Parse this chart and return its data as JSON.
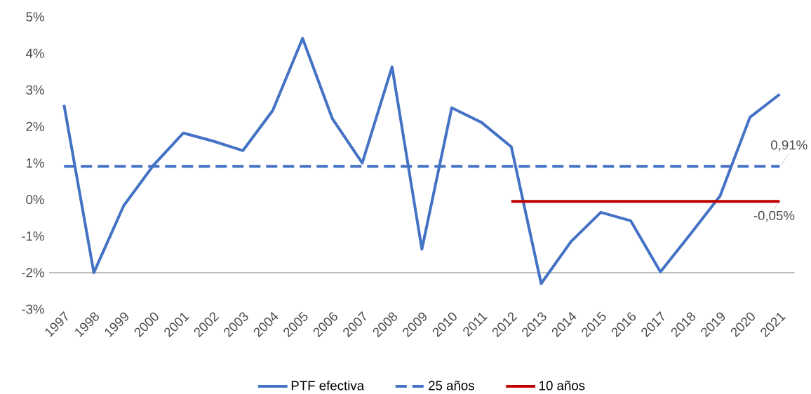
{
  "chart_data": {
    "type": "line",
    "categories": [
      "1997",
      "1998",
      "1999",
      "2000",
      "2001",
      "2002",
      "2003",
      "2004",
      "2005",
      "2006",
      "2007",
      "2008",
      "2009",
      "2010",
      "2011",
      "2012",
      "2013",
      "2014",
      "2015",
      "2016",
      "2017",
      "2018",
      "2019",
      "2020",
      "2021"
    ],
    "series": [
      {
        "name": "PTF efectiva",
        "color": "#4472c4",
        "line_style": "solid",
        "values": [
          2.59,
          -2.0,
          -0.17,
          0.94,
          1.82,
          1.6,
          1.34,
          2.44,
          4.41,
          2.21,
          1.0,
          3.63,
          -1.36,
          2.51,
          2.11,
          1.44,
          -2.3,
          -1.15,
          -0.35,
          -0.58,
          -1.98,
          -0.95,
          0.1,
          2.25,
          2.88
        ]
      },
      {
        "name": "25 años",
        "color": "#4472c4",
        "line_style": "dashed",
        "values": [
          0.91,
          0.91,
          0.91,
          0.91,
          0.91,
          0.91,
          0.91,
          0.91,
          0.91,
          0.91,
          0.91,
          0.91,
          0.91,
          0.91,
          0.91,
          0.91,
          0.91,
          0.91,
          0.91,
          0.91,
          0.91,
          0.91,
          0.91,
          0.91,
          0.91
        ],
        "value_labels": [
          null,
          null,
          null,
          null,
          null,
          null,
          null,
          null,
          null,
          null,
          null,
          null,
          null,
          null,
          null,
          null,
          null,
          null,
          null,
          null,
          null,
          null,
          null,
          null,
          "0,91%"
        ]
      },
      {
        "name": "10 años",
        "color": "#c00000",
        "line_style": "solid",
        "values": [
          null,
          null,
          null,
          null,
          null,
          null,
          null,
          null,
          null,
          null,
          null,
          null,
          null,
          null,
          null,
          -0.05,
          -0.05,
          -0.05,
          -0.05,
          -0.05,
          -0.05,
          -0.05,
          -0.05,
          -0.05,
          -0.05
        ],
        "value_labels": [
          null,
          null,
          null,
          null,
          null,
          null,
          null,
          null,
          null,
          null,
          null,
          null,
          null,
          null,
          null,
          null,
          null,
          null,
          null,
          null,
          null,
          null,
          null,
          null,
          "-0,05%"
        ]
      }
    ],
    "ylim": [
      -3,
      5
    ],
    "yticks": [
      {
        "value": -3,
        "label": "-3%"
      },
      {
        "value": -2,
        "label": "-2%"
      },
      {
        "value": -1,
        "label": "-1%"
      },
      {
        "value": 0,
        "label": "0%"
      },
      {
        "value": 1,
        "label": "1%"
      },
      {
        "value": 2,
        "label": "2%"
      },
      {
        "value": 3,
        "label": "3%"
      },
      {
        "value": 4,
        "label": "4%"
      },
      {
        "value": 5,
        "label": "5%"
      }
    ],
    "ref_lines": [
      {
        "axis": "y",
        "value": -2,
        "color": "#bfbfbf"
      }
    ],
    "grid": false,
    "legend": "bottom",
    "marker": "none"
  }
}
